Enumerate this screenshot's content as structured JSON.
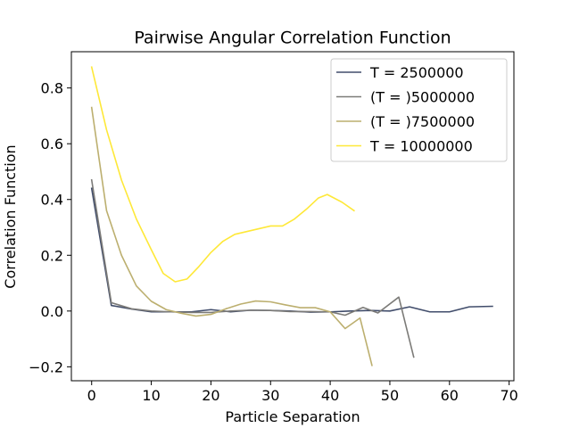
{
  "chart_data": {
    "type": "line",
    "title": "Pairwise Angular Correlation Function",
    "xlabel": "Particle Separation",
    "ylabel": "Correlation Function",
    "xlim": [
      -3.4,
      70.8
    ],
    "ylim": [
      -0.25,
      0.93
    ],
    "xticks": [
      0,
      10,
      20,
      30,
      40,
      50,
      60,
      70
    ],
    "xtick_labels": [
      "0",
      "10",
      "20",
      "30",
      "40",
      "50",
      "60",
      "70"
    ],
    "yticks": [
      -0.2,
      0.0,
      0.2,
      0.4,
      0.6,
      0.8
    ],
    "ytick_labels": [
      "−0.2",
      "0.0",
      "0.2",
      "0.4",
      "0.6",
      "0.8"
    ],
    "grid": false,
    "legend_position": "top-right",
    "series": [
      {
        "name": "T = 2500000",
        "color": "#414d6b",
        "x": [
          0,
          3.3,
          6.7,
          10,
          13.3,
          16.7,
          20,
          23.3,
          26.7,
          30,
          33.3,
          36.7,
          40,
          43.3,
          46.7,
          50,
          53.3,
          56.7,
          60,
          63.3,
          67.2
        ],
        "y": [
          0.44,
          0.02,
          0.007,
          -0.003,
          -0.003,
          -0.003,
          0.005,
          -0.003,
          0.003,
          0.002,
          0.0,
          -0.004,
          -0.003,
          0.0,
          0.002,
          0.0,
          0.015,
          -0.003,
          -0.003,
          0.015,
          0.017
        ]
      },
      {
        "name": "(T = )5000000",
        "color": "#7c7b78",
        "x": [
          0,
          3.3,
          6.7,
          10,
          13.3,
          16.7,
          20,
          23.3,
          26.7,
          30,
          33.3,
          36.7,
          40,
          42.5,
          45.5,
          48,
          51.5,
          54
        ],
        "y": [
          0.47,
          0.03,
          0.008,
          0.0,
          -0.003,
          -0.005,
          -0.005,
          0.0,
          0.003,
          0.002,
          -0.002,
          -0.002,
          -0.003,
          -0.015,
          0.013,
          -0.007,
          0.05,
          -0.165
        ]
      },
      {
        "name": "(T = )7500000",
        "color": "#bcaf6f",
        "x": [
          0,
          2.5,
          5,
          7.5,
          10,
          12.5,
          15,
          17.5,
          20,
          22.5,
          25,
          27.5,
          30,
          32.5,
          35,
          37.5,
          40,
          42.5,
          45,
          47
        ],
        "y": [
          0.73,
          0.36,
          0.2,
          0.09,
          0.035,
          0.005,
          -0.008,
          -0.018,
          -0.012,
          0.008,
          0.025,
          0.036,
          0.033,
          0.022,
          0.012,
          0.012,
          -0.003,
          -0.063,
          -0.025,
          -0.195
        ]
      },
      {
        "name": "T = 10000000",
        "color": "#fee838",
        "x": [
          0,
          2.5,
          5,
          7.5,
          10,
          12,
          14,
          16,
          18,
          20,
          22,
          24,
          26,
          28,
          30,
          32,
          34,
          36,
          38,
          39.5,
          42,
          44
        ],
        "y": [
          0.875,
          0.65,
          0.47,
          0.33,
          0.22,
          0.135,
          0.105,
          0.115,
          0.16,
          0.21,
          0.25,
          0.275,
          0.285,
          0.295,
          0.305,
          0.305,
          0.33,
          0.365,
          0.405,
          0.418,
          0.39,
          0.36
        ]
      }
    ]
  }
}
